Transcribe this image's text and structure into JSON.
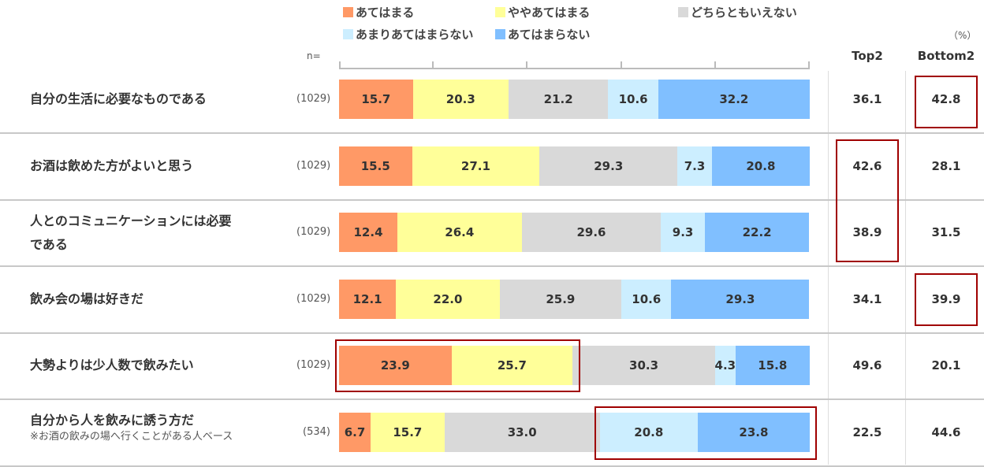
{
  "chart_data": {
    "type": "bar",
    "stacked": true,
    "orientation": "horizontal",
    "unit_label": "（%）",
    "n_label": "n=",
    "legend": [
      {
        "name": "あてはまる",
        "color": "#FF9966"
      },
      {
        "name": "ややあてはまる",
        "color": "#FFFF99"
      },
      {
        "name": "どちらともいえない",
        "color": "#D9D9D9"
      },
      {
        "name": "あまりあてはまらない",
        "color": "#CCEEFF"
      },
      {
        "name": "あてはまらない",
        "color": "#80BFFF"
      }
    ],
    "columns": {
      "top2": "Top2",
      "bottom2": "Bottom2"
    },
    "rows": [
      {
        "label": "自分の生活に必要なものである",
        "note": "",
        "n": "(1029)",
        "values": [
          15.7,
          20.3,
          21.2,
          10.6,
          32.2
        ],
        "top2": "36.1",
        "bottom2": "42.8"
      },
      {
        "label": "お酒は飲めた方がよいと思う",
        "note": "",
        "n": "(1029)",
        "values": [
          15.5,
          27.1,
          29.3,
          7.3,
          20.8
        ],
        "top2": "42.6",
        "bottom2": "28.1"
      },
      {
        "label": "人とのコミュニケーションには必要である",
        "note": "",
        "n": "(1029)",
        "values": [
          12.4,
          26.4,
          29.6,
          9.3,
          22.2
        ],
        "top2": "38.9",
        "bottom2": "31.5"
      },
      {
        "label": "飲み会の場は好きだ",
        "note": "",
        "n": "(1029)",
        "values": [
          12.1,
          22.0,
          25.9,
          10.6,
          29.3
        ],
        "top2": "34.1",
        "bottom2": "39.9"
      },
      {
        "label": "大勢よりは少人数で飲みたい",
        "note": "",
        "n": "(1029)",
        "values": [
          23.9,
          25.7,
          30.3,
          4.3,
          15.8
        ],
        "top2": "49.6",
        "bottom2": "20.1"
      },
      {
        "label": "自分から人を飲みに誘う方だ",
        "note": "※お酒の飲みの場へ行くことがある人ベース",
        "n": "(534)",
        "values": [
          6.7,
          15.7,
          33.0,
          20.8,
          23.8
        ],
        "top2": "22.5",
        "bottom2": "44.6"
      }
    ]
  }
}
